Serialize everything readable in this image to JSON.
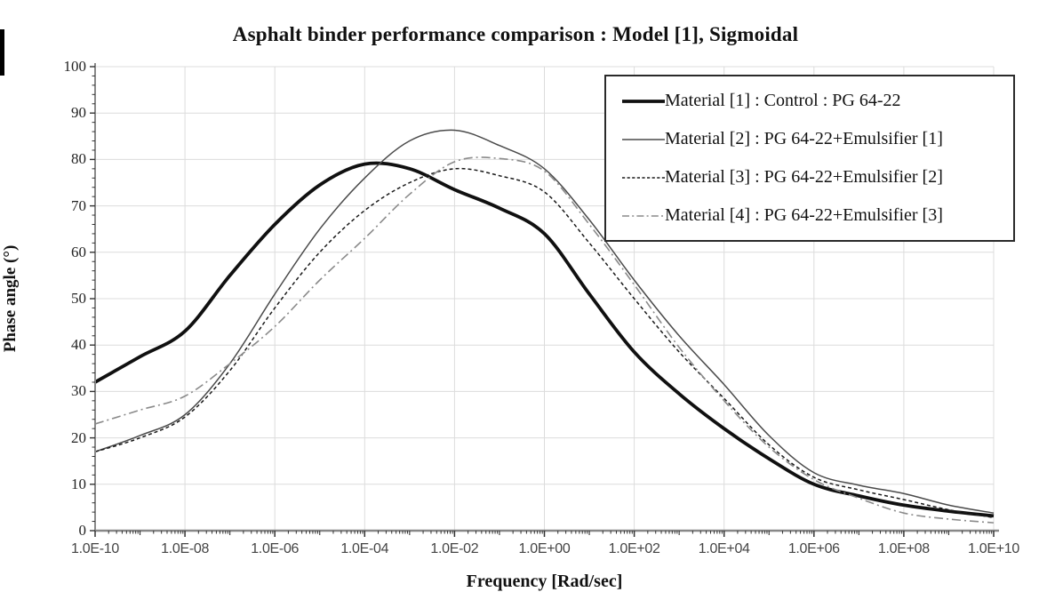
{
  "chart_data": {
    "type": "line",
    "title": "Asphalt binder performance comparison : Model [1], Sigmoidal",
    "xlabel": "Frequency [Rad/sec]",
    "ylabel": "Phase angle (°)",
    "x_scale": "log",
    "x_log_range": [
      -10,
      10
    ],
    "x_tick_labels": [
      "1.0E-10",
      "1.0E-08",
      "1.0E-06",
      "1.0E-04",
      "1.0E-02",
      "1.0E+00",
      "1.0E+02",
      "1.0E+04",
      "1.0E+06",
      "1.0E+08",
      "1.0E+10"
    ],
    "x_tick_decades": [
      -10,
      -8,
      -6,
      -4,
      -2,
      0,
      2,
      4,
      6,
      8,
      10
    ],
    "ylim": [
      0,
      100
    ],
    "y_ticks": [
      0,
      10,
      20,
      30,
      40,
      50,
      60,
      70,
      80,
      90,
      100
    ],
    "grid": true,
    "legend_position": "top-right",
    "x_decades": [
      -10,
      -9,
      -8,
      -7,
      -6,
      -5,
      -4,
      -3,
      -2,
      -1,
      0,
      1,
      2,
      3,
      4,
      5,
      6,
      7,
      8,
      9,
      10
    ],
    "series": [
      {
        "name": "Material [1] : Control : PG 64-22",
        "color": "#101010",
        "width": 3.8,
        "dash": "",
        "values": [
          32,
          37.5,
          43,
          55,
          66,
          74.5,
          79,
          78,
          73.5,
          69.5,
          64,
          51,
          38.5,
          29.5,
          22,
          15.5,
          10,
          7.5,
          5.5,
          4.2,
          3.2
        ]
      },
      {
        "name": "Material [2] : PG 64-22+Emulsifier [1]",
        "color": "#4a4a4a",
        "width": 1.5,
        "dash": "",
        "values": [
          17,
          20.5,
          25,
          36,
          51,
          65,
          76,
          84,
          86.3,
          83,
          78,
          67,
          54,
          42,
          31.5,
          20.5,
          12.5,
          9.8,
          8,
          5.5,
          3.8
        ]
      },
      {
        "name": "Material [3] : PG 64-22+Emulsifier [2]",
        "color": "#1a1a1a",
        "width": 1.5,
        "dash": "4 3",
        "values": [
          17,
          20,
          24.5,
          34.5,
          48,
          60,
          69,
          75,
          78,
          76.5,
          73,
          62,
          50,
          38.5,
          28.5,
          18.5,
          11.5,
          8.8,
          6.7,
          4.5,
          2.8
        ]
      },
      {
        "name": "Material [4] : PG 64-22+Emulsifier [3]",
        "color": "#8a8a8a",
        "width": 1.6,
        "dash": "10 4 2 4",
        "values": [
          23,
          26,
          29,
          36,
          44,
          54,
          63,
          72.5,
          79.5,
          80.2,
          77.5,
          66,
          53,
          39.5,
          28,
          18,
          11,
          7,
          3.8,
          2.5,
          1.7
        ]
      }
    ]
  },
  "colors": {
    "background": "#ffffff",
    "grid": "#dcdcdc",
    "axis": "#888888",
    "tick": "#333333",
    "title_text": "#111111",
    "x_tick_text": "#444444",
    "y_tick_text": "#222222"
  }
}
